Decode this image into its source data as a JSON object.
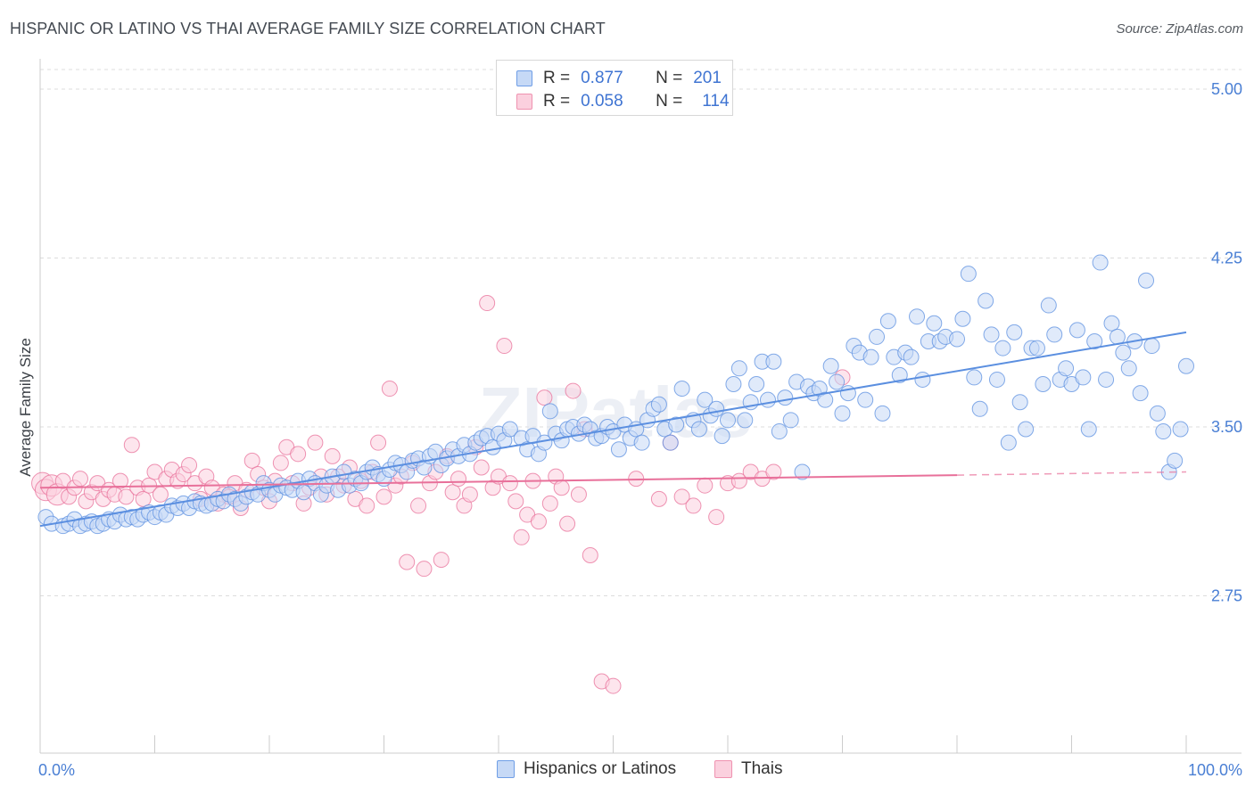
{
  "title": "HISPANIC OR LATINO VS THAI AVERAGE FAMILY SIZE CORRELATION CHART",
  "source": "Source: ZipAtlas.com",
  "watermark": "ZIPatlas",
  "stats": {
    "r_label": "R =",
    "n_label": "N =",
    "rows": [
      {
        "r": "0.877",
        "n": "201",
        "color": "#6f9ee6",
        "fill": "#c6d9f6"
      },
      {
        "r": "0.058",
        "n": "114",
        "color": "#ef92b0",
        "fill": "#fbd0de"
      }
    ]
  },
  "legend": [
    {
      "name": "Hispanics or Latinos",
      "color": "#6f9ee6",
      "fill": "#c6d9f6"
    },
    {
      "name": "Thais",
      "color": "#ef92b0",
      "fill": "#fbd0de"
    }
  ],
  "chart_data": {
    "type": "scatter",
    "title": "HISPANIC OR LATINO VS THAI AVERAGE FAMILY SIZE CORRELATION CHART",
    "ylabel": "Average Family Size",
    "xlabel": "",
    "xlim": [
      0,
      100
    ],
    "ylim": [
      2.0,
      5.1
    ],
    "x_tick_labels": [
      "0.0%",
      "100.0%"
    ],
    "y_ticks": [
      2.75,
      3.5,
      4.25,
      5.0
    ],
    "y_tick_labels": [
      "2.75",
      "3.50",
      "4.25",
      "5.00"
    ],
    "grid": "horizontal-dashed",
    "series": [
      {
        "name": "Hispanics or Latinos",
        "color": "#5b8fe0",
        "fill": "#c6d9f6",
        "trend": {
          "x0": 0,
          "y0": 3.06,
          "x1": 100,
          "y1": 3.92,
          "dashed_from": null
        },
        "points": [
          [
            0.5,
            3.1
          ],
          [
            1,
            3.07
          ],
          [
            2,
            3.06
          ],
          [
            2.5,
            3.07
          ],
          [
            3,
            3.09
          ],
          [
            3.5,
            3.06
          ],
          [
            4,
            3.07
          ],
          [
            4.5,
            3.08
          ],
          [
            5,
            3.06
          ],
          [
            5.5,
            3.07
          ],
          [
            6,
            3.09
          ],
          [
            6.5,
            3.08
          ],
          [
            7,
            3.11
          ],
          [
            7.5,
            3.09
          ],
          [
            8,
            3.1
          ],
          [
            8.5,
            3.09
          ],
          [
            9,
            3.11
          ],
          [
            9.5,
            3.12
          ],
          [
            10,
            3.1
          ],
          [
            10.5,
            3.12
          ],
          [
            11,
            3.11
          ],
          [
            11.5,
            3.15
          ],
          [
            12,
            3.14
          ],
          [
            12.5,
            3.16
          ],
          [
            13,
            3.14
          ],
          [
            13.5,
            3.17
          ],
          [
            14,
            3.16
          ],
          [
            14.5,
            3.15
          ],
          [
            15,
            3.16
          ],
          [
            15.5,
            3.18
          ],
          [
            16,
            3.17
          ],
          [
            16.5,
            3.2
          ],
          [
            17,
            3.18
          ],
          [
            17.5,
            3.16
          ],
          [
            18,
            3.19
          ],
          [
            18.5,
            3.21
          ],
          [
            19,
            3.2
          ],
          [
            19.5,
            3.25
          ],
          [
            20,
            3.22
          ],
          [
            20.5,
            3.2
          ],
          [
            21,
            3.24
          ],
          [
            21.5,
            3.23
          ],
          [
            22,
            3.22
          ],
          [
            22.5,
            3.26
          ],
          [
            23,
            3.21
          ],
          [
            23.5,
            3.27
          ],
          [
            24,
            3.25
          ],
          [
            24.5,
            3.2
          ],
          [
            25,
            3.24
          ],
          [
            25.5,
            3.28
          ],
          [
            26,
            3.22
          ],
          [
            26.5,
            3.3
          ],
          [
            27,
            3.24
          ],
          [
            27.5,
            3.27
          ],
          [
            28,
            3.25
          ],
          [
            28.5,
            3.3
          ],
          [
            29,
            3.32
          ],
          [
            29.5,
            3.29
          ],
          [
            30,
            3.27
          ],
          [
            30.5,
            3.31
          ],
          [
            31,
            3.34
          ],
          [
            31.5,
            3.33
          ],
          [
            32,
            3.3
          ],
          [
            32.5,
            3.35
          ],
          [
            33,
            3.36
          ],
          [
            33.5,
            3.32
          ],
          [
            34,
            3.37
          ],
          [
            34.5,
            3.39
          ],
          [
            35,
            3.33
          ],
          [
            35.5,
            3.36
          ],
          [
            36,
            3.4
          ],
          [
            36.5,
            3.37
          ],
          [
            37,
            3.42
          ],
          [
            37.5,
            3.38
          ],
          [
            38,
            3.43
          ],
          [
            38.5,
            3.45
          ],
          [
            39,
            3.46
          ],
          [
            39.5,
            3.41
          ],
          [
            40,
            3.47
          ],
          [
            40.5,
            3.44
          ],
          [
            41,
            3.49
          ],
          [
            42,
            3.45
          ],
          [
            42.5,
            3.4
          ],
          [
            43,
            3.46
          ],
          [
            43.5,
            3.38
          ],
          [
            44,
            3.43
          ],
          [
            44.5,
            3.57
          ],
          [
            45,
            3.47
          ],
          [
            45.5,
            3.44
          ],
          [
            46,
            3.49
          ],
          [
            46.5,
            3.5
          ],
          [
            47,
            3.47
          ],
          [
            47.5,
            3.51
          ],
          [
            48,
            3.49
          ],
          [
            48.5,
            3.45
          ],
          [
            49,
            3.46
          ],
          [
            49.5,
            3.5
          ],
          [
            50,
            3.48
          ],
          [
            50.5,
            3.4
          ],
          [
            51,
            3.51
          ],
          [
            51.5,
            3.45
          ],
          [
            52,
            3.49
          ],
          [
            52.5,
            3.43
          ],
          [
            53,
            3.53
          ],
          [
            53.5,
            3.58
          ],
          [
            54,
            3.6
          ],
          [
            54.5,
            3.49
          ],
          [
            55,
            3.43
          ],
          [
            55.5,
            3.51
          ],
          [
            56,
            3.67
          ],
          [
            57,
            3.53
          ],
          [
            57.5,
            3.49
          ],
          [
            58,
            3.62
          ],
          [
            58.5,
            3.55
          ],
          [
            59,
            3.58
          ],
          [
            59.5,
            3.46
          ],
          [
            60,
            3.53
          ],
          [
            60.5,
            3.69
          ],
          [
            61,
            3.76
          ],
          [
            61.5,
            3.53
          ],
          [
            62,
            3.61
          ],
          [
            62.5,
            3.69
          ],
          [
            63,
            3.79
          ],
          [
            63.5,
            3.62
          ],
          [
            64,
            3.79
          ],
          [
            64.5,
            3.48
          ],
          [
            65,
            3.63
          ],
          [
            65.5,
            3.53
          ],
          [
            66,
            3.7
          ],
          [
            66.5,
            3.3
          ],
          [
            67,
            3.68
          ],
          [
            67.5,
            3.65
          ],
          [
            68,
            3.67
          ],
          [
            68.5,
            3.62
          ],
          [
            69,
            3.77
          ],
          [
            69.5,
            3.7
          ],
          [
            70,
            3.56
          ],
          [
            70.5,
            3.65
          ],
          [
            71,
            3.86
          ],
          [
            71.5,
            3.83
          ],
          [
            72,
            3.62
          ],
          [
            72.5,
            3.81
          ],
          [
            73,
            3.9
          ],
          [
            73.5,
            3.56
          ],
          [
            74,
            3.97
          ],
          [
            74.5,
            3.81
          ],
          [
            75,
            3.73
          ],
          [
            75.5,
            3.83
          ],
          [
            76,
            3.81
          ],
          [
            76.5,
            3.99
          ],
          [
            77,
            3.71
          ],
          [
            77.5,
            3.88
          ],
          [
            78,
            3.96
          ],
          [
            78.5,
            3.88
          ],
          [
            79,
            3.9
          ],
          [
            80,
            3.89
          ],
          [
            80.5,
            3.98
          ],
          [
            81,
            4.18
          ],
          [
            81.5,
            3.72
          ],
          [
            82,
            3.58
          ],
          [
            82.5,
            4.06
          ],
          [
            83,
            3.91
          ],
          [
            83.5,
            3.71
          ],
          [
            84,
            3.85
          ],
          [
            84.5,
            3.43
          ],
          [
            85,
            3.92
          ],
          [
            85.5,
            3.61
          ],
          [
            86,
            3.49
          ],
          [
            86.5,
            3.85
          ],
          [
            87,
            3.85
          ],
          [
            87.5,
            3.69
          ],
          [
            88,
            4.04
          ],
          [
            88.5,
            3.91
          ],
          [
            89,
            3.71
          ],
          [
            89.5,
            3.76
          ],
          [
            90,
            3.69
          ],
          [
            90.5,
            3.93
          ],
          [
            91,
            3.72
          ],
          [
            91.5,
            3.49
          ],
          [
            92,
            3.88
          ],
          [
            92.5,
            4.23
          ],
          [
            93,
            3.71
          ],
          [
            93.5,
            3.96
          ],
          [
            94,
            3.9
          ],
          [
            94.5,
            3.83
          ],
          [
            95,
            3.76
          ],
          [
            95.5,
            3.88
          ],
          [
            96,
            3.65
          ],
          [
            96.5,
            4.15
          ],
          [
            97,
            3.86
          ],
          [
            97.5,
            3.56
          ],
          [
            98,
            3.48
          ],
          [
            98.5,
            3.3
          ],
          [
            99,
            3.35
          ],
          [
            99.5,
            3.49
          ],
          [
            100,
            3.77
          ]
        ]
      },
      {
        "name": "Thais",
        "color": "#e8709a",
        "fill": "#fbd0de",
        "trend": {
          "x0": 0,
          "y0": 3.23,
          "x1": 100,
          "y1": 3.3,
          "dashed_from": 80
        },
        "points": [
          [
            0.2,
            3.25
          ],
          [
            0.5,
            3.22
          ],
          [
            1,
            3.24
          ],
          [
            1.5,
            3.2
          ],
          [
            2,
            3.26
          ],
          [
            2.5,
            3.19
          ],
          [
            3,
            3.23
          ],
          [
            3.5,
            3.27
          ],
          [
            4,
            3.17
          ],
          [
            4.5,
            3.21
          ],
          [
            5,
            3.25
          ],
          [
            5.5,
            3.18
          ],
          [
            6,
            3.22
          ],
          [
            6.5,
            3.2
          ],
          [
            7,
            3.26
          ],
          [
            7.5,
            3.19
          ],
          [
            8,
            3.42
          ],
          [
            8.5,
            3.23
          ],
          [
            9,
            3.18
          ],
          [
            9.5,
            3.24
          ],
          [
            10,
            3.3
          ],
          [
            10.5,
            3.2
          ],
          [
            11,
            3.27
          ],
          [
            11.5,
            3.31
          ],
          [
            12,
            3.26
          ],
          [
            12.5,
            3.29
          ],
          [
            13,
            3.33
          ],
          [
            13.5,
            3.25
          ],
          [
            14,
            3.18
          ],
          [
            14.5,
            3.28
          ],
          [
            15,
            3.23
          ],
          [
            15.5,
            3.16
          ],
          [
            16,
            3.2
          ],
          [
            16.5,
            3.19
          ],
          [
            17,
            3.25
          ],
          [
            17.5,
            3.14
          ],
          [
            18,
            3.22
          ],
          [
            18.5,
            3.35
          ],
          [
            19,
            3.29
          ],
          [
            19.5,
            3.23
          ],
          [
            20,
            3.17
          ],
          [
            20.5,
            3.26
          ],
          [
            21,
            3.34
          ],
          [
            21.5,
            3.41
          ],
          [
            22,
            3.25
          ],
          [
            22.5,
            3.38
          ],
          [
            23,
            3.16
          ],
          [
            23.5,
            3.23
          ],
          [
            24,
            3.43
          ],
          [
            24.5,
            3.28
          ],
          [
            25,
            3.2
          ],
          [
            25.5,
            3.37
          ],
          [
            26,
            3.28
          ],
          [
            26.5,
            3.24
          ],
          [
            27,
            3.32
          ],
          [
            27.5,
            3.18
          ],
          [
            28,
            3.26
          ],
          [
            28.5,
            3.15
          ],
          [
            29,
            3.3
          ],
          [
            29.5,
            3.43
          ],
          [
            30,
            3.19
          ],
          [
            30.5,
            3.67
          ],
          [
            31,
            3.24
          ],
          [
            31.5,
            3.28
          ],
          [
            32,
            2.9
          ],
          [
            32.5,
            3.34
          ],
          [
            33,
            3.15
          ],
          [
            33.5,
            2.87
          ],
          [
            34,
            3.25
          ],
          [
            34.5,
            3.3
          ],
          [
            35,
            2.91
          ],
          [
            35.5,
            3.37
          ],
          [
            36,
            3.21
          ],
          [
            36.5,
            3.27
          ],
          [
            37,
            3.15
          ],
          [
            37.5,
            3.2
          ],
          [
            38,
            3.41
          ],
          [
            38.5,
            3.32
          ],
          [
            39,
            4.05
          ],
          [
            39.5,
            3.23
          ],
          [
            40,
            3.28
          ],
          [
            40.5,
            3.86
          ],
          [
            41,
            3.25
          ],
          [
            41.5,
            3.17
          ],
          [
            42,
            3.01
          ],
          [
            42.5,
            3.11
          ],
          [
            43,
            3.26
          ],
          [
            43.5,
            3.08
          ],
          [
            44,
            3.63
          ],
          [
            44.5,
            3.16
          ],
          [
            45,
            3.28
          ],
          [
            45.5,
            3.23
          ],
          [
            46,
            3.07
          ],
          [
            46.5,
            3.66
          ],
          [
            47,
            3.2
          ],
          [
            47.5,
            3.49
          ],
          [
            48,
            2.93
          ],
          [
            49,
            2.37
          ],
          [
            50,
            2.35
          ],
          [
            52,
            3.27
          ],
          [
            54,
            3.18
          ],
          [
            55,
            3.43
          ],
          [
            56,
            3.19
          ],
          [
            57,
            3.15
          ],
          [
            58,
            3.24
          ],
          [
            59,
            3.1
          ],
          [
            60,
            3.25
          ],
          [
            61,
            3.26
          ],
          [
            62,
            3.3
          ],
          [
            63,
            3.27
          ],
          [
            64,
            3.3
          ],
          [
            70,
            3.72
          ]
        ]
      }
    ]
  }
}
